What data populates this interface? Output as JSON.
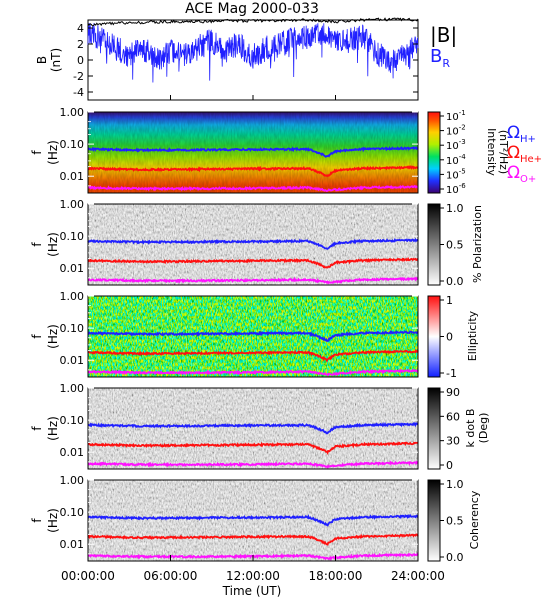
{
  "title": "ACE Mag 2000-033",
  "colors": {
    "total_field": "#000000",
    "radial": "#2020ff",
    "h_plus": "#2020ff",
    "he_plus": "#ff1010",
    "o_plus": "#ff10ff"
  },
  "time_axis": {
    "label": "Time (UT)",
    "ticks": [
      "00:00:00",
      "06:00:00",
      "12:00:00",
      "18:00:00",
      "24:00:00"
    ]
  },
  "freq_axis": {
    "ticks": [
      "1.00",
      "0.10",
      "0.01"
    ],
    "label_f": "f",
    "label_unit": "(Hz)"
  },
  "panel1": {
    "ylabel_top": "B",
    "ylabel_unit": "(nT)",
    "yticks": [
      "4",
      "2",
      "0",
      "-2",
      "-4"
    ],
    "legend_total": "|B|",
    "legend_radial": "B",
    "legend_radial_sub": "R"
  },
  "gyro_legend": {
    "omega": "Ω",
    "h_sub": "H+",
    "he_sub": "He+",
    "o_sub": "O+"
  },
  "colorbars": {
    "intensity": {
      "ticks": [
        "10",
        "10",
        "10",
        "10",
        "10",
        "10"
      ],
      "sups": [
        "-1",
        "-2",
        "-3",
        "-4",
        "-5",
        "-6"
      ],
      "title_line1": "Intensity",
      "title_line2": "(nT²/Hz)"
    },
    "polarization": {
      "ticks": [
        "1.0",
        "0.5",
        "0.0"
      ],
      "title": "% Polarization"
    },
    "ellipticity": {
      "ticks": [
        "1",
        "0",
        "-1"
      ],
      "title": "Ellipticity"
    },
    "kdotb": {
      "ticks": [
        "90",
        "60",
        "30",
        "0"
      ],
      "title_line1": "k dot B",
      "title_line2": "(Deg)"
    },
    "coherency": {
      "ticks": [
        "1.0",
        "0.5",
        "0.0"
      ],
      "title": "Coherency"
    }
  },
  "chart_data": [
    {
      "type": "line",
      "title": "ACE Mag 2000-033",
      "xlabel": "Time (UT)",
      "ylabel": "B (nT)",
      "xlim": [
        0,
        24
      ],
      "ylim": [
        -5,
        5
      ],
      "series": [
        {
          "name": "|B|",
          "x": [
            0,
            2,
            4,
            6,
            8,
            10,
            12,
            14,
            16,
            18,
            20,
            22,
            24
          ],
          "values": [
            4.4,
            4.6,
            4.7,
            4.8,
            4.8,
            4.9,
            4.9,
            4.9,
            5.0,
            4.8,
            5.0,
            5.1,
            5.0
          ]
        },
        {
          "name": "B R",
          "x": [
            0,
            1,
            2,
            3,
            4,
            5,
            6,
            7,
            8,
            9,
            10,
            11,
            12,
            13,
            14,
            15,
            16,
            17,
            18,
            19,
            20,
            21,
            22,
            23,
            24
          ],
          "values": [
            3.5,
            2.5,
            1.5,
            0.5,
            1.5,
            0.0,
            1.0,
            0.5,
            1.5,
            2.5,
            1.0,
            2.0,
            0.5,
            1.5,
            2.0,
            2.5,
            3.0,
            3.5,
            2.0,
            2.5,
            3.0,
            1.0,
            -0.5,
            0.5,
            2.5
          ]
        }
      ]
    },
    {
      "type": "heatmap",
      "ylabel": "f (Hz)",
      "xlabel": "Time (UT)",
      "ylim": [
        0.003,
        1.0
      ],
      "xlim": [
        0,
        24
      ],
      "yscale": "log",
      "gyrofrequency_lines": [
        {
          "name": "H+",
          "x": [
            0,
            4,
            8,
            12,
            16,
            17.4,
            18,
            20,
            24
          ],
          "values": [
            0.07,
            0.065,
            0.066,
            0.068,
            0.07,
            0.04,
            0.06,
            0.07,
            0.075
          ]
        },
        {
          "name": "He+",
          "x": [
            0,
            4,
            8,
            12,
            16,
            17.4,
            18,
            20,
            24
          ],
          "values": [
            0.0175,
            0.016,
            0.0165,
            0.017,
            0.0175,
            0.01,
            0.015,
            0.0175,
            0.019
          ]
        },
        {
          "name": "O+",
          "x": [
            0,
            4,
            8,
            12,
            16,
            17.4,
            18,
            20,
            24
          ],
          "values": [
            0.0044,
            0.0041,
            0.0041,
            0.0042,
            0.0044,
            0.0036,
            0.0038,
            0.0044,
            0.0047
          ]
        }
      ]
    }
  ]
}
